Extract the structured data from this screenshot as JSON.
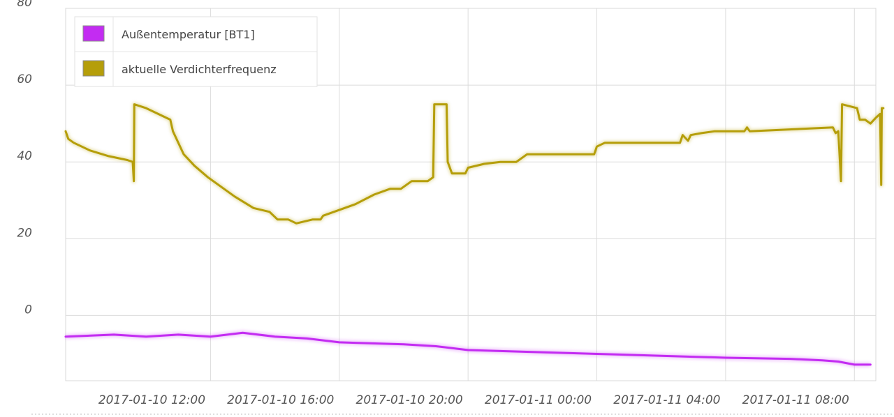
{
  "chart_data": {
    "type": "line",
    "ylim": [
      -17,
      80
    ],
    "yticks": [
      0,
      20,
      40,
      60,
      80
    ],
    "ytick_labels": [
      "0",
      "20",
      "40",
      "60",
      "80"
    ],
    "xlim": [
      "2017-01-10 07:30",
      "2017-01-11 08:40"
    ],
    "xticks": [
      "2017-01-10 12:00",
      "2017-01-10 16:00",
      "2017-01-10 20:00",
      "2017-01-11 00:00",
      "2017-01-11 04:00",
      "2017-01-11 08:00"
    ],
    "xtick_labels": [
      "2017-01-10 12:00",
      "2017-01-10 16:00",
      "2017-01-10 20:00",
      "2017-01-11 00:00",
      "2017-01-11 04:00",
      "2017-01-11 08:00"
    ],
    "grid": true,
    "legend_position": "top-left",
    "series": [
      {
        "name": "Außentemperatur [BT1]",
        "color": "#c32cf2",
        "points": [
          [
            "2017-01-10 07:30",
            -5.5
          ],
          [
            "2017-01-10 09:00",
            -5.0
          ],
          [
            "2017-01-10 10:00",
            -5.5
          ],
          [
            "2017-01-10 11:00",
            -5.0
          ],
          [
            "2017-01-10 12:00",
            -5.5
          ],
          [
            "2017-01-10 13:00",
            -4.5
          ],
          [
            "2017-01-10 14:00",
            -5.5
          ],
          [
            "2017-01-10 15:00",
            -6.0
          ],
          [
            "2017-01-10 16:00",
            -7.0
          ],
          [
            "2017-01-10 18:00",
            -7.5
          ],
          [
            "2017-01-10 19:00",
            -8.0
          ],
          [
            "2017-01-10 20:00",
            -9.0
          ],
          [
            "2017-01-10 22:00",
            -9.5
          ],
          [
            "2017-01-11 00:00",
            -10.0
          ],
          [
            "2017-01-11 02:00",
            -10.5
          ],
          [
            "2017-01-11 04:00",
            -11.0
          ],
          [
            "2017-01-11 06:00",
            -11.3
          ],
          [
            "2017-01-11 07:00",
            -11.7
          ],
          [
            "2017-01-11 07:30",
            -12.0
          ],
          [
            "2017-01-11 08:00",
            -12.8
          ],
          [
            "2017-01-11 08:30",
            -12.8
          ]
        ]
      },
      {
        "name": "aktuelle Verdichterfrequenz",
        "color": "#b59e0a",
        "points": [
          [
            "2017-01-10 07:30",
            48
          ],
          [
            "2017-01-10 07:35",
            46
          ],
          [
            "2017-01-10 07:45",
            45
          ],
          [
            "2017-01-10 08:15",
            43
          ],
          [
            "2017-01-10 08:50",
            41.5
          ],
          [
            "2017-01-10 09:25",
            40.5
          ],
          [
            "2017-01-10 09:35",
            40
          ],
          [
            "2017-01-10 09:37",
            35
          ],
          [
            "2017-01-10 09:38",
            55
          ],
          [
            "2017-01-10 10:00",
            54
          ],
          [
            "2017-01-10 10:30",
            52
          ],
          [
            "2017-01-10 10:45",
            51
          ],
          [
            "2017-01-10 10:50",
            48
          ],
          [
            "2017-01-10 11:00",
            45
          ],
          [
            "2017-01-10 11:10",
            42
          ],
          [
            "2017-01-10 11:30",
            39
          ],
          [
            "2017-01-10 11:55",
            36
          ],
          [
            "2017-01-10 12:15",
            34
          ],
          [
            "2017-01-10 12:45",
            31
          ],
          [
            "2017-01-10 13:20",
            28
          ],
          [
            "2017-01-10 13:50",
            27
          ],
          [
            "2017-01-10 14:05",
            25
          ],
          [
            "2017-01-10 14:25",
            25
          ],
          [
            "2017-01-10 14:40",
            24
          ],
          [
            "2017-01-10 15:10",
            25
          ],
          [
            "2017-01-10 15:25",
            25
          ],
          [
            "2017-01-10 15:30",
            26
          ],
          [
            "2017-01-10 16:30",
            29
          ],
          [
            "2017-01-10 17:05",
            31.5
          ],
          [
            "2017-01-10 17:35",
            33
          ],
          [
            "2017-01-10 17:55",
            33
          ],
          [
            "2017-01-10 18:15",
            35
          ],
          [
            "2017-01-10 18:45",
            35
          ],
          [
            "2017-01-10 18:55",
            36
          ],
          [
            "2017-01-10 18:57",
            55
          ],
          [
            "2017-01-10 19:20",
            55
          ],
          [
            "2017-01-10 19:22",
            40
          ],
          [
            "2017-01-10 19:30",
            37
          ],
          [
            "2017-01-10 19:55",
            37
          ],
          [
            "2017-01-10 20:00",
            38.5
          ],
          [
            "2017-01-10 20:30",
            39.5
          ],
          [
            "2017-01-10 21:00",
            40
          ],
          [
            "2017-01-10 21:30",
            40
          ],
          [
            "2017-01-10 21:50",
            42
          ],
          [
            "2017-01-10 23:55",
            42
          ],
          [
            "2017-01-11 00:00",
            44
          ],
          [
            "2017-01-11 00:15",
            45
          ],
          [
            "2017-01-11 02:35",
            45
          ],
          [
            "2017-01-11 02:40",
            47
          ],
          [
            "2017-01-11 02:50",
            45.5
          ],
          [
            "2017-01-11 02:55",
            47
          ],
          [
            "2017-01-11 03:15",
            47.5
          ],
          [
            "2017-01-11 03:40",
            48
          ],
          [
            "2017-01-11 04:35",
            48
          ],
          [
            "2017-01-11 04:40",
            49
          ],
          [
            "2017-01-11 04:45",
            48
          ],
          [
            "2017-01-11 07:20",
            49
          ],
          [
            "2017-01-11 07:25",
            47.5
          ],
          [
            "2017-01-11 07:30",
            48
          ],
          [
            "2017-01-11 07:35",
            35
          ],
          [
            "2017-01-11 07:37",
            55
          ],
          [
            "2017-01-11 08:05",
            54
          ],
          [
            "2017-01-11 08:10",
            51
          ],
          [
            "2017-01-11 08:20",
            51
          ],
          [
            "2017-01-11 08:30",
            50
          ],
          [
            "2017-01-11 08:40",
            51.5
          ],
          [
            "2017-01-11 08:48",
            52.5
          ],
          [
            "2017-01-11 08:50",
            34
          ],
          [
            "2017-01-11 08:51",
            54
          ],
          [
            "2017-01-11 08:54",
            54
          ]
        ]
      }
    ]
  }
}
